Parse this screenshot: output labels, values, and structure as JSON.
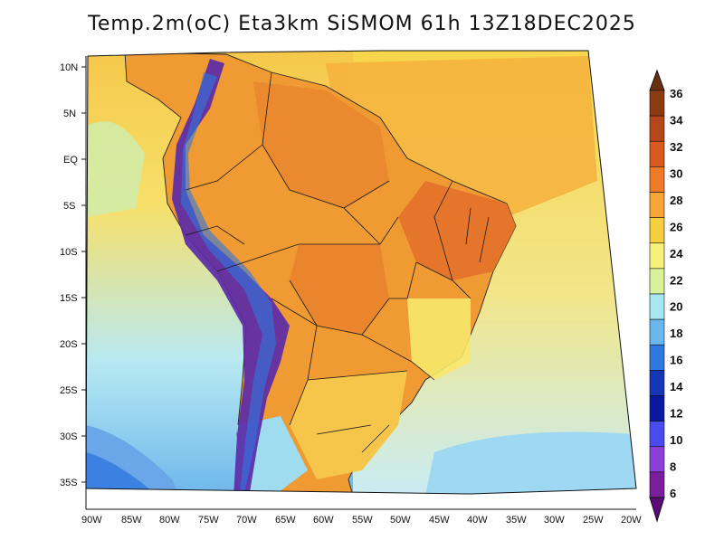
{
  "title": "Temp.2m(oC) Eta3km SiSMOM 61h 13Z18DEC2025",
  "map": {
    "variable": "2m temperature",
    "units": "oC",
    "lat_labels": [
      "10N",
      "5N",
      "EQ",
      "5S",
      "10S",
      "15S",
      "20S",
      "25S",
      "30S",
      "35S"
    ],
    "lon_labels": [
      "90W",
      "85W",
      "80W",
      "75W",
      "70W",
      "65W",
      "60W",
      "55W",
      "50W",
      "45W",
      "40W",
      "35W",
      "30W",
      "25W",
      "20W"
    ]
  },
  "colorbar": {
    "labels": [
      "36",
      "34",
      "32",
      "30",
      "28",
      "26",
      "24",
      "22",
      "20",
      "18",
      "16",
      "14",
      "12",
      "10",
      "8",
      "6"
    ],
    "colors": [
      "#6b2f0e",
      "#8b3a12",
      "#b5471a",
      "#d9591f",
      "#ef7a2a",
      "#f5a633",
      "#f5cf3d",
      "#f7f07a",
      "#d9f29a",
      "#a8e6f0",
      "#6ab7ee",
      "#2f78df",
      "#1636b8",
      "#0a18a0",
      "#4a4bef",
      "#8a3fd8",
      "#7a1f9a",
      "#5a0a7a"
    ]
  },
  "colors": {
    "warm": "#f2a03a",
    "hot": "#e36d26",
    "ocean": "#f5d24a",
    "cool": "#8fd3f0",
    "andes": "#5b2aa8"
  }
}
